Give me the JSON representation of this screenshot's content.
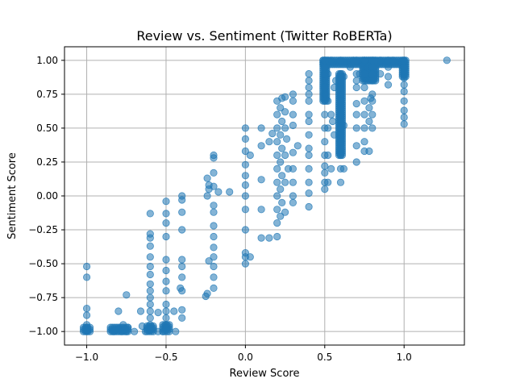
{
  "chart_data": {
    "type": "scatter",
    "title": "Review vs. Sentiment (Twitter RoBERTa)",
    "xlabel": "Review Score",
    "ylabel": "Sentiment Score",
    "xlim": [
      -1.14,
      1.38
    ],
    "ylim": [
      -1.1,
      1.1
    ],
    "xticks": [
      -1.0,
      -0.5,
      0.0,
      0.5,
      1.0
    ],
    "xtick_labels": [
      "−1.0",
      "−0.5",
      "0.0",
      "0.5",
      "1.0"
    ],
    "yticks": [
      -1.0,
      -0.75,
      -0.5,
      -0.25,
      0.0,
      0.25,
      0.5,
      0.75,
      1.0
    ],
    "ytick_labels": [
      "−1.00",
      "−0.75",
      "−0.50",
      "−0.25",
      "0.00",
      "0.25",
      "0.50",
      "0.75",
      "1.00"
    ],
    "grid": true,
    "color": "#1f77b4",
    "points": [
      [
        -1.0,
        -0.52
      ],
      [
        -1.0,
        -0.6
      ],
      [
        -1.0,
        -0.83
      ],
      [
        -1.0,
        -0.88
      ],
      [
        -1.0,
        -0.95
      ],
      [
        -1.0,
        -0.97
      ],
      [
        -1.0,
        -0.99
      ],
      [
        -1.0,
        -1.0
      ],
      [
        -0.83,
        -1.0
      ],
      [
        -0.8,
        -0.98
      ],
      [
        -0.8,
        -0.85
      ],
      [
        -0.78,
        -1.0
      ],
      [
        -0.77,
        -0.95
      ],
      [
        -0.76,
        -0.98
      ],
      [
        -0.75,
        -0.73
      ],
      [
        -0.75,
        -1.0
      ],
      [
        -0.74,
        -0.97
      ],
      [
        -0.7,
        -1.0
      ],
      [
        -0.66,
        -0.85
      ],
      [
        -0.65,
        -0.96
      ],
      [
        -0.63,
        -1.0
      ],
      [
        -0.6,
        -0.99
      ],
      [
        -0.6,
        -0.95
      ],
      [
        -0.6,
        -0.9
      ],
      [
        -0.6,
        -0.85
      ],
      [
        -0.6,
        -0.8
      ],
      [
        -0.6,
        -0.75
      ],
      [
        -0.6,
        -0.7
      ],
      [
        -0.6,
        -0.65
      ],
      [
        -0.6,
        -0.58
      ],
      [
        -0.6,
        -0.52
      ],
      [
        -0.6,
        -0.45
      ],
      [
        -0.6,
        -0.37
      ],
      [
        -0.6,
        -0.31
      ],
      [
        -0.6,
        -0.28
      ],
      [
        -0.6,
        -0.13
      ],
      [
        -0.55,
        -1.0
      ],
      [
        -0.55,
        -0.86
      ],
      [
        -0.52,
        -1.0
      ],
      [
        -0.5,
        -0.98
      ],
      [
        -0.5,
        -0.95
      ],
      [
        -0.5,
        -0.9
      ],
      [
        -0.5,
        -0.85
      ],
      [
        -0.5,
        -0.8
      ],
      [
        -0.5,
        -0.7
      ],
      [
        -0.5,
        -0.63
      ],
      [
        -0.5,
        -0.55
      ],
      [
        -0.5,
        -0.47
      ],
      [
        -0.5,
        -0.3
      ],
      [
        -0.5,
        -0.2
      ],
      [
        -0.5,
        -0.13
      ],
      [
        -0.5,
        -0.04
      ],
      [
        -0.45,
        -0.85
      ],
      [
        -0.44,
        -1.0
      ],
      [
        -0.41,
        -0.68
      ],
      [
        -0.4,
        -0.9
      ],
      [
        -0.4,
        -0.84
      ],
      [
        -0.4,
        -0.7
      ],
      [
        -0.4,
        -0.6
      ],
      [
        -0.4,
        -0.52
      ],
      [
        -0.4,
        -0.47
      ],
      [
        -0.4,
        -0.25
      ],
      [
        -0.4,
        -0.12
      ],
      [
        -0.4,
        -0.03
      ],
      [
        -0.4,
        0.0
      ],
      [
        -0.25,
        -0.74
      ],
      [
        -0.24,
        -0.72
      ],
      [
        -0.23,
        -0.48
      ],
      [
        -0.24,
        0.0
      ],
      [
        -0.23,
        0.05
      ],
      [
        -0.23,
        0.08
      ],
      [
        -0.24,
        0.13
      ],
      [
        -0.2,
        -0.68
      ],
      [
        -0.2,
        -0.6
      ],
      [
        -0.2,
        -0.52
      ],
      [
        -0.2,
        -0.45
      ],
      [
        -0.2,
        -0.38
      ],
      [
        -0.2,
        -0.3
      ],
      [
        -0.2,
        -0.22
      ],
      [
        -0.2,
        -0.12
      ],
      [
        -0.2,
        -0.07
      ],
      [
        -0.2,
        0.07
      ],
      [
        -0.2,
        0.17
      ],
      [
        -0.2,
        0.28
      ],
      [
        -0.2,
        0.3
      ],
      [
        -0.17,
        0.03
      ],
      [
        -0.1,
        0.03
      ],
      [
        0.0,
        -0.5
      ],
      [
        0.0,
        -0.45
      ],
      [
        0.0,
        -0.42
      ],
      [
        0.0,
        -0.25
      ],
      [
        0.0,
        -0.1
      ],
      [
        0.0,
        0.0
      ],
      [
        0.0,
        0.08
      ],
      [
        0.0,
        0.15
      ],
      [
        0.0,
        0.23
      ],
      [
        0.0,
        0.33
      ],
      [
        0.0,
        0.42
      ],
      [
        0.0,
        0.5
      ],
      [
        0.03,
        -0.45
      ],
      [
        0.03,
        0.3
      ],
      [
        0.1,
        -0.31
      ],
      [
        0.1,
        -0.1
      ],
      [
        0.1,
        0.12
      ],
      [
        0.1,
        0.37
      ],
      [
        0.1,
        0.5
      ],
      [
        0.15,
        -0.31
      ],
      [
        0.15,
        0.4
      ],
      [
        0.17,
        0.46
      ],
      [
        0.2,
        -0.3
      ],
      [
        0.2,
        -0.2
      ],
      [
        0.2,
        -0.1
      ],
      [
        0.2,
        0.0
      ],
      [
        0.2,
        0.1
      ],
      [
        0.2,
        0.2
      ],
      [
        0.2,
        0.3
      ],
      [
        0.2,
        0.4
      ],
      [
        0.2,
        0.5
      ],
      [
        0.2,
        0.6
      ],
      [
        0.2,
        0.7
      ],
      [
        0.22,
        -0.15
      ],
      [
        0.22,
        0.05
      ],
      [
        0.22,
        0.25
      ],
      [
        0.22,
        0.45
      ],
      [
        0.22,
        0.65
      ],
      [
        0.23,
        -0.05
      ],
      [
        0.23,
        0.15
      ],
      [
        0.23,
        0.35
      ],
      [
        0.23,
        0.55
      ],
      [
        0.23,
        0.72
      ],
      [
        0.25,
        -0.12
      ],
      [
        0.25,
        0.1
      ],
      [
        0.25,
        0.3
      ],
      [
        0.25,
        0.5
      ],
      [
        0.25,
        0.62
      ],
      [
        0.25,
        0.73
      ],
      [
        0.26,
        0.42
      ],
      [
        0.27,
        0.2
      ],
      [
        0.3,
        -0.05
      ],
      [
        0.3,
        0.0
      ],
      [
        0.3,
        0.1
      ],
      [
        0.3,
        0.2
      ],
      [
        0.3,
        0.32
      ],
      [
        0.3,
        0.52
      ],
      [
        0.3,
        0.6
      ],
      [
        0.3,
        0.7
      ],
      [
        0.3,
        0.75
      ],
      [
        0.33,
        0.37
      ],
      [
        0.4,
        -0.08
      ],
      [
        0.4,
        0.02
      ],
      [
        0.4,
        0.1
      ],
      [
        0.4,
        0.2
      ],
      [
        0.4,
        0.3
      ],
      [
        0.4,
        0.35
      ],
      [
        0.4,
        0.45
      ],
      [
        0.4,
        0.55
      ],
      [
        0.4,
        0.6
      ],
      [
        0.4,
        0.7
      ],
      [
        0.4,
        0.75
      ],
      [
        0.4,
        0.8
      ],
      [
        0.4,
        0.85
      ],
      [
        0.4,
        0.9
      ],
      [
        0.5,
        0.05
      ],
      [
        0.5,
        0.1
      ],
      [
        0.5,
        0.17
      ],
      [
        0.5,
        0.22
      ],
      [
        0.5,
        0.3
      ],
      [
        0.5,
        0.4
      ],
      [
        0.5,
        0.5
      ],
      [
        0.5,
        0.6
      ],
      [
        0.5,
        0.7
      ],
      [
        0.5,
        0.8
      ],
      [
        0.5,
        0.9
      ],
      [
        0.5,
        0.95
      ],
      [
        0.5,
        1.0
      ],
      [
        0.52,
        0.1
      ],
      [
        0.52,
        0.3
      ],
      [
        0.52,
        0.5
      ],
      [
        0.52,
        0.7
      ],
      [
        0.52,
        0.9
      ],
      [
        0.52,
        1.0
      ],
      [
        0.54,
        0.2
      ],
      [
        0.54,
        0.6
      ],
      [
        0.54,
        1.0
      ],
      [
        0.55,
        0.55
      ],
      [
        0.56,
        0.45
      ],
      [
        0.56,
        0.8
      ],
      [
        0.57,
        0.85
      ],
      [
        0.6,
        0.1
      ],
      [
        0.6,
        0.2
      ],
      [
        0.6,
        0.3
      ],
      [
        0.6,
        0.4
      ],
      [
        0.6,
        0.5
      ],
      [
        0.6,
        0.6
      ],
      [
        0.6,
        0.7
      ],
      [
        0.6,
        0.8
      ],
      [
        0.6,
        0.9
      ],
      [
        0.6,
        1.0
      ],
      [
        0.62,
        0.2
      ],
      [
        0.62,
        0.52
      ],
      [
        0.62,
        0.88
      ],
      [
        0.66,
        0.95
      ],
      [
        0.68,
        1.0
      ],
      [
        0.7,
        0.25
      ],
      [
        0.7,
        0.37
      ],
      [
        0.7,
        0.5
      ],
      [
        0.7,
        0.6
      ],
      [
        0.7,
        0.68
      ],
      [
        0.7,
        0.8
      ],
      [
        0.7,
        0.85
      ],
      [
        0.7,
        0.9
      ],
      [
        0.7,
        1.0
      ],
      [
        0.72,
        0.9
      ],
      [
        0.75,
        0.33
      ],
      [
        0.75,
        0.4
      ],
      [
        0.75,
        0.5
      ],
      [
        0.75,
        0.6
      ],
      [
        0.75,
        0.7
      ],
      [
        0.75,
        0.8
      ],
      [
        0.75,
        0.9
      ],
      [
        0.75,
        1.0
      ],
      [
        0.78,
        0.33
      ],
      [
        0.78,
        0.55
      ],
      [
        0.78,
        0.65
      ],
      [
        0.79,
        0.72
      ],
      [
        0.8,
        0.5
      ],
      [
        0.8,
        0.6
      ],
      [
        0.8,
        0.7
      ],
      [
        0.8,
        0.75
      ],
      [
        0.8,
        0.85
      ],
      [
        0.8,
        0.9
      ],
      [
        0.8,
        0.95
      ],
      [
        0.8,
        1.0
      ],
      [
        0.85,
        0.9
      ],
      [
        0.85,
        1.0
      ],
      [
        0.9,
        0.82
      ],
      [
        0.9,
        0.88
      ],
      [
        0.9,
        0.95
      ],
      [
        0.9,
        1.0
      ],
      [
        0.93,
        1.0
      ],
      [
        1.0,
        0.53
      ],
      [
        1.0,
        0.58
      ],
      [
        1.0,
        0.63
      ],
      [
        1.0,
        0.7
      ],
      [
        1.0,
        0.77
      ],
      [
        1.0,
        0.82
      ],
      [
        1.0,
        0.87
      ],
      [
        1.0,
        0.92
      ],
      [
        1.0,
        0.95
      ],
      [
        1.0,
        1.0
      ],
      [
        1.27,
        1.0
      ]
    ],
    "dense_strips": [
      {
        "x": [
          -1.02,
          -0.98
        ],
        "y": [
          -1.0,
          -0.97
        ]
      },
      {
        "x": [
          -0.85,
          -0.74
        ],
        "y": [
          -1.0,
          -0.97
        ]
      },
      {
        "x": [
          -0.62,
          -0.58
        ],
        "y": [
          -1.0,
          -0.96
        ]
      },
      {
        "x": [
          -0.52,
          -0.48
        ],
        "y": [
          -1.0,
          -0.95
        ]
      },
      {
        "x": [
          0.49,
          1.0
        ],
        "y": [
          0.97,
          1.0
        ]
      },
      {
        "x": [
          0.49,
          0.51
        ],
        "y": [
          0.7,
          1.0
        ]
      },
      {
        "x": [
          0.59,
          0.61
        ],
        "y": [
          0.3,
          0.9
        ]
      },
      {
        "x": [
          0.74,
          0.82
        ],
        "y": [
          0.85,
          1.0
        ]
      },
      {
        "x": [
          0.99,
          1.01
        ],
        "y": [
          0.88,
          1.0
        ]
      }
    ]
  }
}
